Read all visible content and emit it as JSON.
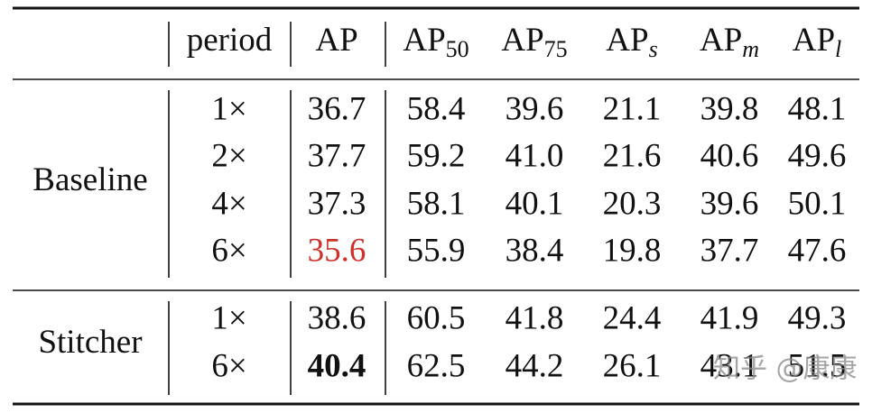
{
  "table": {
    "columns": [
      {
        "text": "period"
      },
      {
        "text": "AP"
      },
      {
        "text": "AP",
        "sub": "50"
      },
      {
        "text": "AP",
        "sub": "75"
      },
      {
        "text": "AP",
        "sub": "s"
      },
      {
        "text": "AP",
        "sub": "m"
      },
      {
        "text": "AP",
        "sub": "l"
      }
    ],
    "groups": [
      {
        "label": "Baseline",
        "rows": [
          [
            "1×",
            "36.7",
            "58.4",
            "39.6",
            "21.1",
            "39.8",
            "48.1"
          ],
          [
            "2×",
            "37.7",
            "59.2",
            "41.0",
            "21.6",
            "40.6",
            "49.6"
          ],
          [
            "4×",
            "37.3",
            "58.1",
            "40.1",
            "20.3",
            "39.6",
            "50.1"
          ],
          [
            "6×",
            "35.6",
            "55.9",
            "38.4",
            "19.8",
            "37.7",
            "47.6"
          ]
        ]
      },
      {
        "label": "Stitcher",
        "rows": [
          [
            "1×",
            "38.6",
            "60.5",
            "41.8",
            "24.4",
            "41.9",
            "49.3"
          ],
          [
            "6×",
            "40.4",
            "62.5",
            "44.2",
            "26.1",
            "43.1",
            "51.5"
          ]
        ]
      }
    ]
  },
  "watermark": "知乎 @康康"
}
